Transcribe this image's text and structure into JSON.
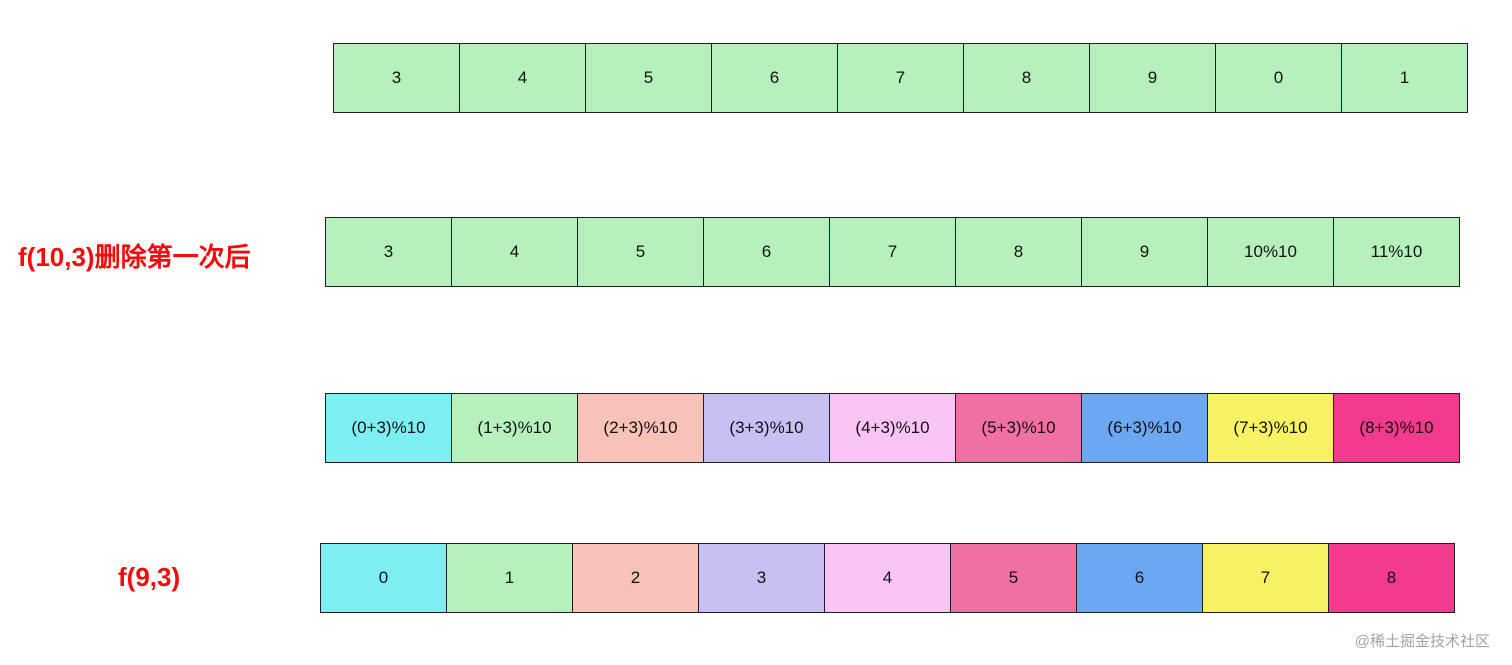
{
  "watermark": {
    "text": "@稀土掘金技术社区"
  },
  "colors": {
    "green": "#b6f1bd",
    "cyan": "#7deef2",
    "salmon": "#f8c2b9",
    "lavender": "#c8c0f2",
    "pink": "#fac5f4",
    "hotpink": "#f170a4",
    "blue": "#6ca7f3",
    "yellow": "#f6f264",
    "magenta": "#f23a8e",
    "label_red": "#f40b0b",
    "border": "#1f1f1f"
  },
  "rows": [
    {
      "name": "original-array",
      "label": null,
      "cells": [
        {
          "text": "3",
          "color": "green"
        },
        {
          "text": "4",
          "color": "green"
        },
        {
          "text": "5",
          "color": "green"
        },
        {
          "text": "6",
          "color": "green"
        },
        {
          "text": "7",
          "color": "green"
        },
        {
          "text": "8",
          "color": "green"
        },
        {
          "text": "9",
          "color": "green"
        },
        {
          "text": "0",
          "color": "green"
        },
        {
          "text": "1",
          "color": "green"
        }
      ]
    },
    {
      "name": "after-first-deletion",
      "label": {
        "text": "f(10,3)删除第一次后"
      },
      "cells": [
        {
          "text": "3",
          "color": "green"
        },
        {
          "text": "4",
          "color": "green"
        },
        {
          "text": "5",
          "color": "green"
        },
        {
          "text": "6",
          "color": "green"
        },
        {
          "text": "7",
          "color": "green"
        },
        {
          "text": "8",
          "color": "green"
        },
        {
          "text": "9",
          "color": "green"
        },
        {
          "text": "10%10",
          "color": "green"
        },
        {
          "text": "11%10",
          "color": "green"
        }
      ]
    },
    {
      "name": "mapping-row",
      "label": null,
      "cells": [
        {
          "text": "(0+3)%10",
          "color": "cyan"
        },
        {
          "text": "(1+3)%10",
          "color": "green"
        },
        {
          "text": "(2+3)%10",
          "color": "salmon"
        },
        {
          "text": "(3+3)%10",
          "color": "lavender"
        },
        {
          "text": "(4+3)%10",
          "color": "pink"
        },
        {
          "text": "(5+3)%10",
          "color": "hotpink"
        },
        {
          "text": "(6+3)%10",
          "color": "blue"
        },
        {
          "text": "(7+3)%10",
          "color": "yellow"
        },
        {
          "text": "(8+3)%10",
          "color": "magenta"
        }
      ]
    },
    {
      "name": "f93-row",
      "label": {
        "text": "f(9,3)"
      },
      "cells": [
        {
          "text": "0",
          "color": "cyan"
        },
        {
          "text": "1",
          "color": "green"
        },
        {
          "text": "2",
          "color": "salmon"
        },
        {
          "text": "3",
          "color": "lavender"
        },
        {
          "text": "4",
          "color": "pink"
        },
        {
          "text": "5",
          "color": "hotpink"
        },
        {
          "text": "6",
          "color": "blue"
        },
        {
          "text": "7",
          "color": "yellow"
        },
        {
          "text": "8",
          "color": "magenta"
        }
      ]
    }
  ]
}
